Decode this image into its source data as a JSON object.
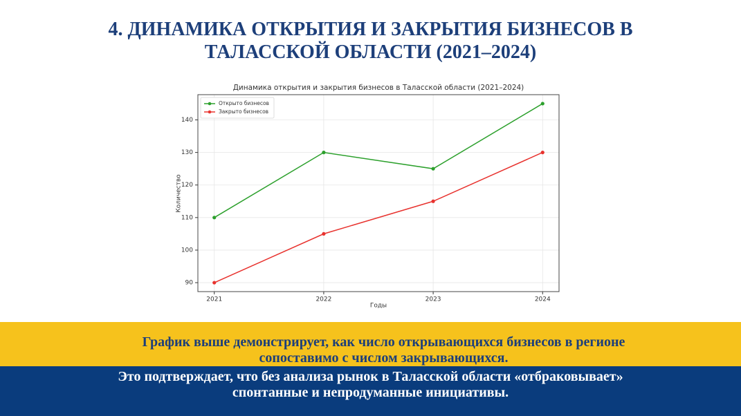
{
  "slide": {
    "title_lines": [
      "4. ДИНАМИКА ОТКРЫТИЯ И ЗАКРЫТИЯ БИЗНЕСОВ В",
      "ТАЛАССКОЙ ОБЛАСТИ (2021–2024)"
    ],
    "highlight_lines": [
      "График выше демонстрирует, как число открывающихся бизнесов в регионе",
      "сопоставимо с числом закрывающихся."
    ],
    "conclusion_lines": [
      "Это подтверждает, что без анализа рынок в Таласской области «отбраковывает»",
      "спонтанные и непродуманные инициативы."
    ]
  },
  "chart_data": {
    "type": "line",
    "title": "Динамика открытия и закрытия бизнесов в Таласской области (2021–2024)",
    "x_label": "Годы",
    "y_label": "Количество",
    "x": [
      2021,
      2022,
      2023,
      2024
    ],
    "series": [
      {
        "name": "Открыто бизнесов",
        "color": "#2ca02c",
        "values": [
          110,
          130,
          125,
          145
        ]
      },
      {
        "name": "Закрыто бизнесов",
        "color": "#e8322e",
        "values": [
          90,
          105,
          115,
          130
        ]
      }
    ],
    "xlim": [
      2020.85,
      2024.15
    ],
    "xticks": [
      2021,
      2022,
      2023,
      2024
    ],
    "ylim": [
      87.25,
      147.75
    ],
    "yticks": [
      90,
      100,
      110,
      120,
      130,
      140
    ],
    "grid": true,
    "legend": "upper-left"
  }
}
